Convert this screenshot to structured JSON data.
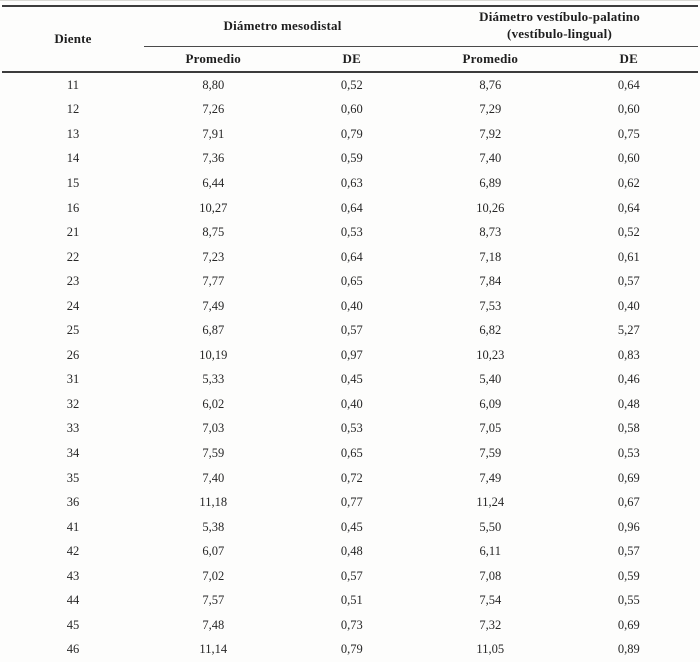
{
  "page": {
    "background": "#fdfdfc",
    "rule_color": "#3c3c3c"
  },
  "table": {
    "columns": {
      "diente": "Diente",
      "group1": "Diámetro mesodistal",
      "group2_line1": "Diámetro vestíbulo-palatino",
      "group2_line2": "(vestíbulo-lingual)",
      "sub": [
        "Promedio",
        "DE",
        "Promedio",
        "DE"
      ]
    },
    "rows": [
      [
        "11",
        "8,80",
        "0,52",
        "8,76",
        "0,64"
      ],
      [
        "12",
        "7,26",
        "0,60",
        "7,29",
        "0,60"
      ],
      [
        "13",
        "7,91",
        "0,79",
        "7,92",
        "0,75"
      ],
      [
        "14",
        "7,36",
        "0,59",
        "7,40",
        "0,60"
      ],
      [
        "15",
        "6,44",
        "0,63",
        "6,89",
        "0,62"
      ],
      [
        "16",
        "10,27",
        "0,64",
        "10,26",
        "0,64"
      ],
      [
        "21",
        "8,75",
        "0,53",
        "8,73",
        "0,52"
      ],
      [
        "22",
        "7,23",
        "0,64",
        "7,18",
        "0,61"
      ],
      [
        "23",
        "7,77",
        "0,65",
        "7,84",
        "0,57"
      ],
      [
        "24",
        "7,49",
        "0,40",
        "7,53",
        "0,40"
      ],
      [
        "25",
        "6,87",
        "0,57",
        "6,82",
        "5,27"
      ],
      [
        "26",
        "10,19",
        "0,97",
        "10,23",
        "0,83"
      ],
      [
        "31",
        "5,33",
        "0,45",
        "5,40",
        "0,46"
      ],
      [
        "32",
        "6,02",
        "0,40",
        "6,09",
        "0,48"
      ],
      [
        "33",
        "7,03",
        "0,53",
        "7,05",
        "0,58"
      ],
      [
        "34",
        "7,59",
        "0,65",
        "7,59",
        "0,53"
      ],
      [
        "35",
        "7,40",
        "0,72",
        "7,49",
        "0,69"
      ],
      [
        "36",
        "11,18",
        "0,77",
        "11,24",
        "0,67"
      ],
      [
        "41",
        "5,38",
        "0,45",
        "5,50",
        "0,96"
      ],
      [
        "42",
        "6,07",
        "0,48",
        "6,11",
        "0,57"
      ],
      [
        "43",
        "7,02",
        "0,57",
        "7,08",
        "0,59"
      ],
      [
        "44",
        "7,57",
        "0,51",
        "7,54",
        "0,55"
      ],
      [
        "45",
        "7,48",
        "0,73",
        "7,32",
        "0,69"
      ],
      [
        "46",
        "11,14",
        "0,79",
        "11,05",
        "0,89"
      ]
    ],
    "cell_names": [
      "cell-diente",
      "cell-mesodistal-promedio",
      "cell-mesodistal-de",
      "cell-vestibulo-promedio",
      "cell-vestibulo-de"
    ]
  },
  "chart_data": {
    "type": "table",
    "title": "",
    "column_headers": [
      "Diente",
      "Diámetro mesodistal - Promedio",
      "Diámetro mesodistal - DE",
      "Diámetro vestíbulo-palatino (vestíbulo-lingual) - Promedio",
      "Diámetro vestíbulo-palatino (vestíbulo-lingual) - DE"
    ],
    "rows": [
      [
        "11",
        8.8,
        0.52,
        8.76,
        0.64
      ],
      [
        "12",
        7.26,
        0.6,
        7.29,
        0.6
      ],
      [
        "13",
        7.91,
        0.79,
        7.92,
        0.75
      ],
      [
        "14",
        7.36,
        0.59,
        7.4,
        0.6
      ],
      [
        "15",
        6.44,
        0.63,
        6.89,
        0.62
      ],
      [
        "16",
        10.27,
        0.64,
        10.26,
        0.64
      ],
      [
        "21",
        8.75,
        0.53,
        8.73,
        0.52
      ],
      [
        "22",
        7.23,
        0.64,
        7.18,
        0.61
      ],
      [
        "23",
        7.77,
        0.65,
        7.84,
        0.57
      ],
      [
        "24",
        7.49,
        0.4,
        7.53,
        0.4
      ],
      [
        "25",
        6.87,
        0.57,
        6.82,
        5.27
      ],
      [
        "26",
        10.19,
        0.97,
        10.23,
        0.83
      ],
      [
        "31",
        5.33,
        0.45,
        5.4,
        0.46
      ],
      [
        "32",
        6.02,
        0.4,
        6.09,
        0.48
      ],
      [
        "33",
        7.03,
        0.53,
        7.05,
        0.58
      ],
      [
        "34",
        7.59,
        0.65,
        7.59,
        0.53
      ],
      [
        "35",
        7.4,
        0.72,
        7.49,
        0.69
      ],
      [
        "36",
        11.18,
        0.77,
        11.24,
        0.67
      ],
      [
        "41",
        5.38,
        0.45,
        5.5,
        0.96
      ],
      [
        "42",
        6.07,
        0.48,
        6.11,
        0.57
      ],
      [
        "43",
        7.02,
        0.57,
        7.08,
        0.59
      ],
      [
        "44",
        7.57,
        0.51,
        7.54,
        0.55
      ],
      [
        "45",
        7.48,
        0.73,
        7.32,
        0.69
      ],
      [
        "46",
        11.14,
        0.79,
        11.05,
        0.89
      ]
    ]
  }
}
